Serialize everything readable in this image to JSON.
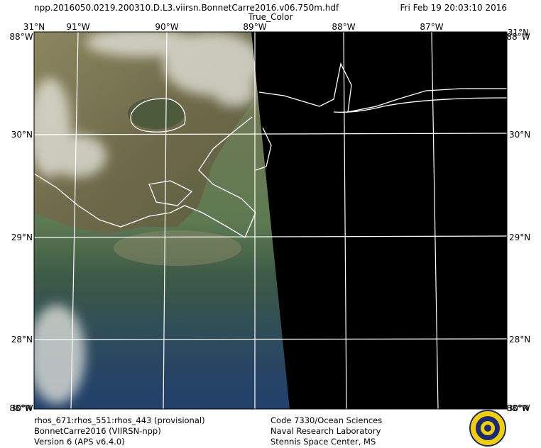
{
  "header": {
    "filename": "npp.2016050.0219.200310.D.L3.viirsn.BonnetCarre2016.v06.750m.hdf",
    "timestamp": "Fri Feb 19 20:03:10 2016",
    "product": "True_Color"
  },
  "map": {
    "top_labels": [
      "31°N",
      "91°W",
      "90°W",
      "89°W",
      "88°W",
      "87°W",
      "31°N"
    ],
    "corner_lon_labels": [
      "88°W",
      "88°W",
      "88°W",
      "88°W"
    ],
    "bottom_corner_lat_labels": [
      "30°N",
      "30°N"
    ],
    "left_lat_labels": [
      "30°N",
      "29°N",
      "28°N"
    ],
    "right_lat_labels": [
      "30°N",
      "29°N",
      "28°N"
    ]
  },
  "footer": {
    "left": [
      "rhos_671:rhos_551:rhos_443 (provisional)",
      "BonnetCarre2016 (VIIRSN-npp)",
      "Version 6 (APS v6.4.0)"
    ],
    "middle": [
      "Code 7330/Ocean Sciences",
      "Naval Research Laboratory",
      "Stennis Space Center, MS"
    ]
  }
}
